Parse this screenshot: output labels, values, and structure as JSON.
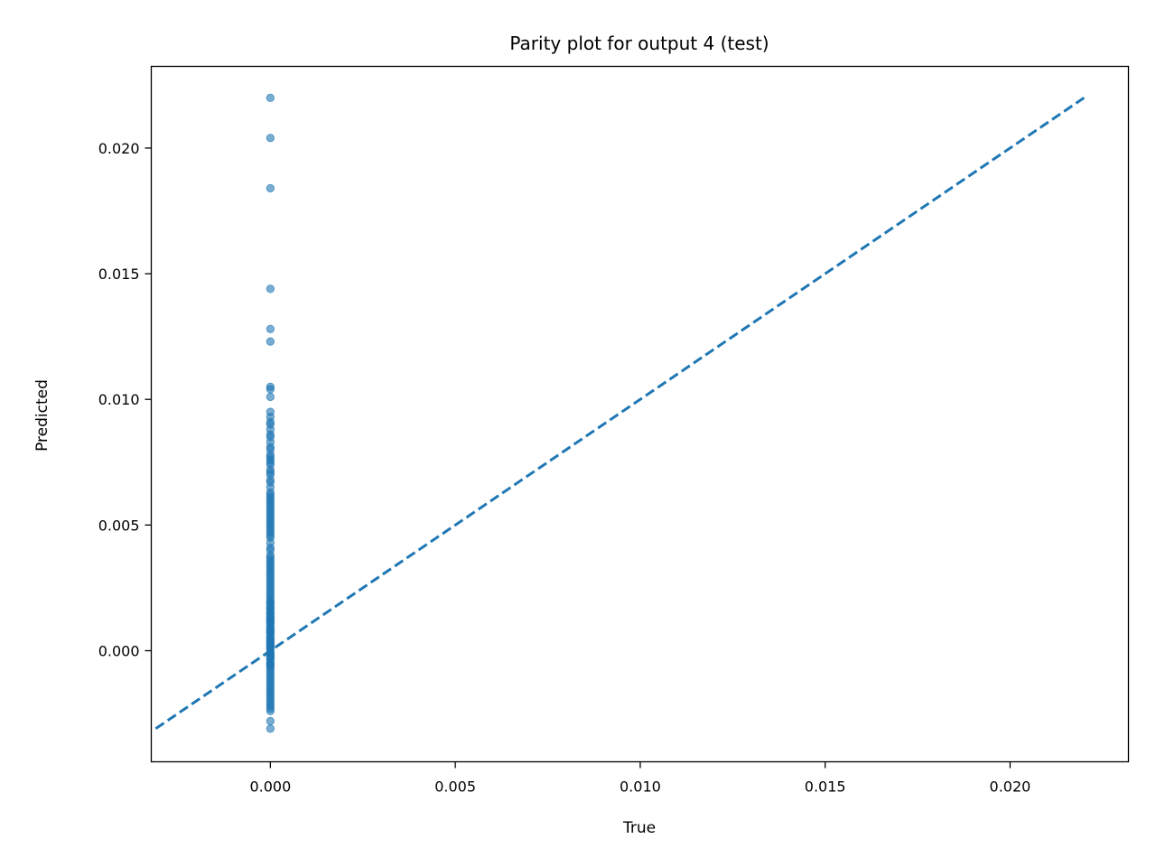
{
  "chart_data": {
    "type": "scatter",
    "title": "Parity plot for output 4 (test)",
    "xlabel": "True",
    "ylabel": "Predicted",
    "xlim": [
      -0.00322,
      0.0232
    ],
    "ylim": [
      -0.00442,
      0.02325
    ],
    "xticks": [
      0.0,
      0.005,
      0.01,
      0.015,
      0.02
    ],
    "xtick_labels": [
      "0.000",
      "0.005",
      "0.010",
      "0.015",
      "0.020"
    ],
    "yticks": [
      0.0,
      0.005,
      0.01,
      0.015,
      0.02
    ],
    "ytick_labels": [
      "0.000",
      "0.005",
      "0.010",
      "0.015",
      "0.020"
    ],
    "grid": false,
    "legend": false,
    "colors": {
      "points": "#1f77b4",
      "line": "#1f77b4",
      "axes": "#000000"
    },
    "series": [
      {
        "kind": "points",
        "x": [
          0,
          0,
          0,
          0,
          0,
          0,
          0,
          0,
          0,
          0,
          0,
          0,
          0,
          0,
          0,
          0,
          0,
          0,
          0,
          0,
          0,
          0,
          0,
          0,
          0,
          0,
          0,
          0,
          0,
          0,
          0,
          0,
          0,
          0,
          0,
          0,
          0,
          0,
          0,
          0,
          0,
          0,
          0,
          0,
          0,
          0,
          0,
          0,
          0,
          0,
          0,
          0,
          0,
          0,
          0,
          0,
          0,
          0,
          0,
          0,
          0,
          0,
          0,
          0,
          0,
          0,
          0,
          0,
          0,
          0,
          0,
          0,
          0,
          0,
          0,
          0,
          0,
          0,
          0,
          0,
          0,
          0,
          0,
          0,
          0,
          0,
          0,
          0,
          0,
          0,
          0,
          0,
          0,
          0,
          0,
          0,
          0,
          0,
          0,
          0,
          0,
          0,
          0,
          0,
          0,
          0,
          0,
          0,
          0,
          0,
          0,
          0,
          0,
          0,
          0,
          0,
          0,
          0,
          0,
          0,
          0,
          0,
          0,
          0,
          0,
          0,
          0,
          0,
          0,
          0,
          0,
          0,
          0,
          0,
          0,
          0
        ],
        "y": [
          0.022,
          0.0204,
          0.0184,
          0.0144,
          0.0128,
          0.0123,
          0.0105,
          0.0104,
          0.0101,
          0.0095,
          0.0093,
          0.0091,
          0.009,
          0.0088,
          0.0086,
          0.0085,
          0.0083,
          0.0081,
          0.008,
          0.0078,
          0.0077,
          0.0076,
          0.0075,
          0.0074,
          0.0072,
          0.0071,
          0.007,
          0.0068,
          0.0067,
          0.0065,
          0.0063,
          0.0062,
          0.0061,
          0.006,
          0.0059,
          0.0058,
          0.0057,
          0.0056,
          0.0055,
          0.0054,
          0.0053,
          0.0052,
          0.0051,
          0.005,
          0.0049,
          0.0048,
          0.0047,
          0.0046,
          0.0045,
          0.0043,
          0.0041,
          0.004,
          0.0038,
          0.0037,
          0.0036,
          0.0035,
          0.0034,
          0.0033,
          0.0032,
          0.0031,
          0.003,
          0.0029,
          0.0028,
          0.0027,
          0.0026,
          0.0025,
          0.0024,
          0.0023,
          0.0022,
          0.0021,
          0.002,
          0.0019,
          0.0018,
          0.0017,
          0.0016,
          0.0015,
          0.0014,
          0.0013,
          0.0012,
          0.0011,
          0.001,
          0.0009,
          0.0008,
          0.0007,
          0.0006,
          0.0005,
          0.0004,
          0.0003,
          0.0002,
          0.0001,
          0.0,
          -0.0001,
          -0.0002,
          -0.0003,
          -0.0004,
          -0.0005,
          -0.0006,
          -0.0007,
          -0.0008,
          -0.0009,
          -0.001,
          -0.0011,
          -0.0012,
          -0.0013,
          -0.0014,
          -0.0015,
          -0.0016,
          -0.0017,
          -0.0018,
          -0.0019,
          -0.002,
          -0.0021,
          -0.0022,
          -0.0023,
          -0.0024,
          -0.0028,
          -0.0031,
          0.0019,
          0.0017,
          0.0015,
          0.0013,
          0.0011,
          0.0009,
          0.0007,
          0.0005,
          0.0003,
          0.0001,
          -0.0001,
          -0.0003,
          -0.0005,
          0.0012,
          0.0008,
          0.0004,
          0.0002,
          -0.0002,
          -0.0006
        ]
      },
      {
        "kind": "parity-line",
        "x": [
          -0.0031,
          0.022
        ],
        "y": [
          -0.0031,
          0.022
        ]
      }
    ]
  }
}
